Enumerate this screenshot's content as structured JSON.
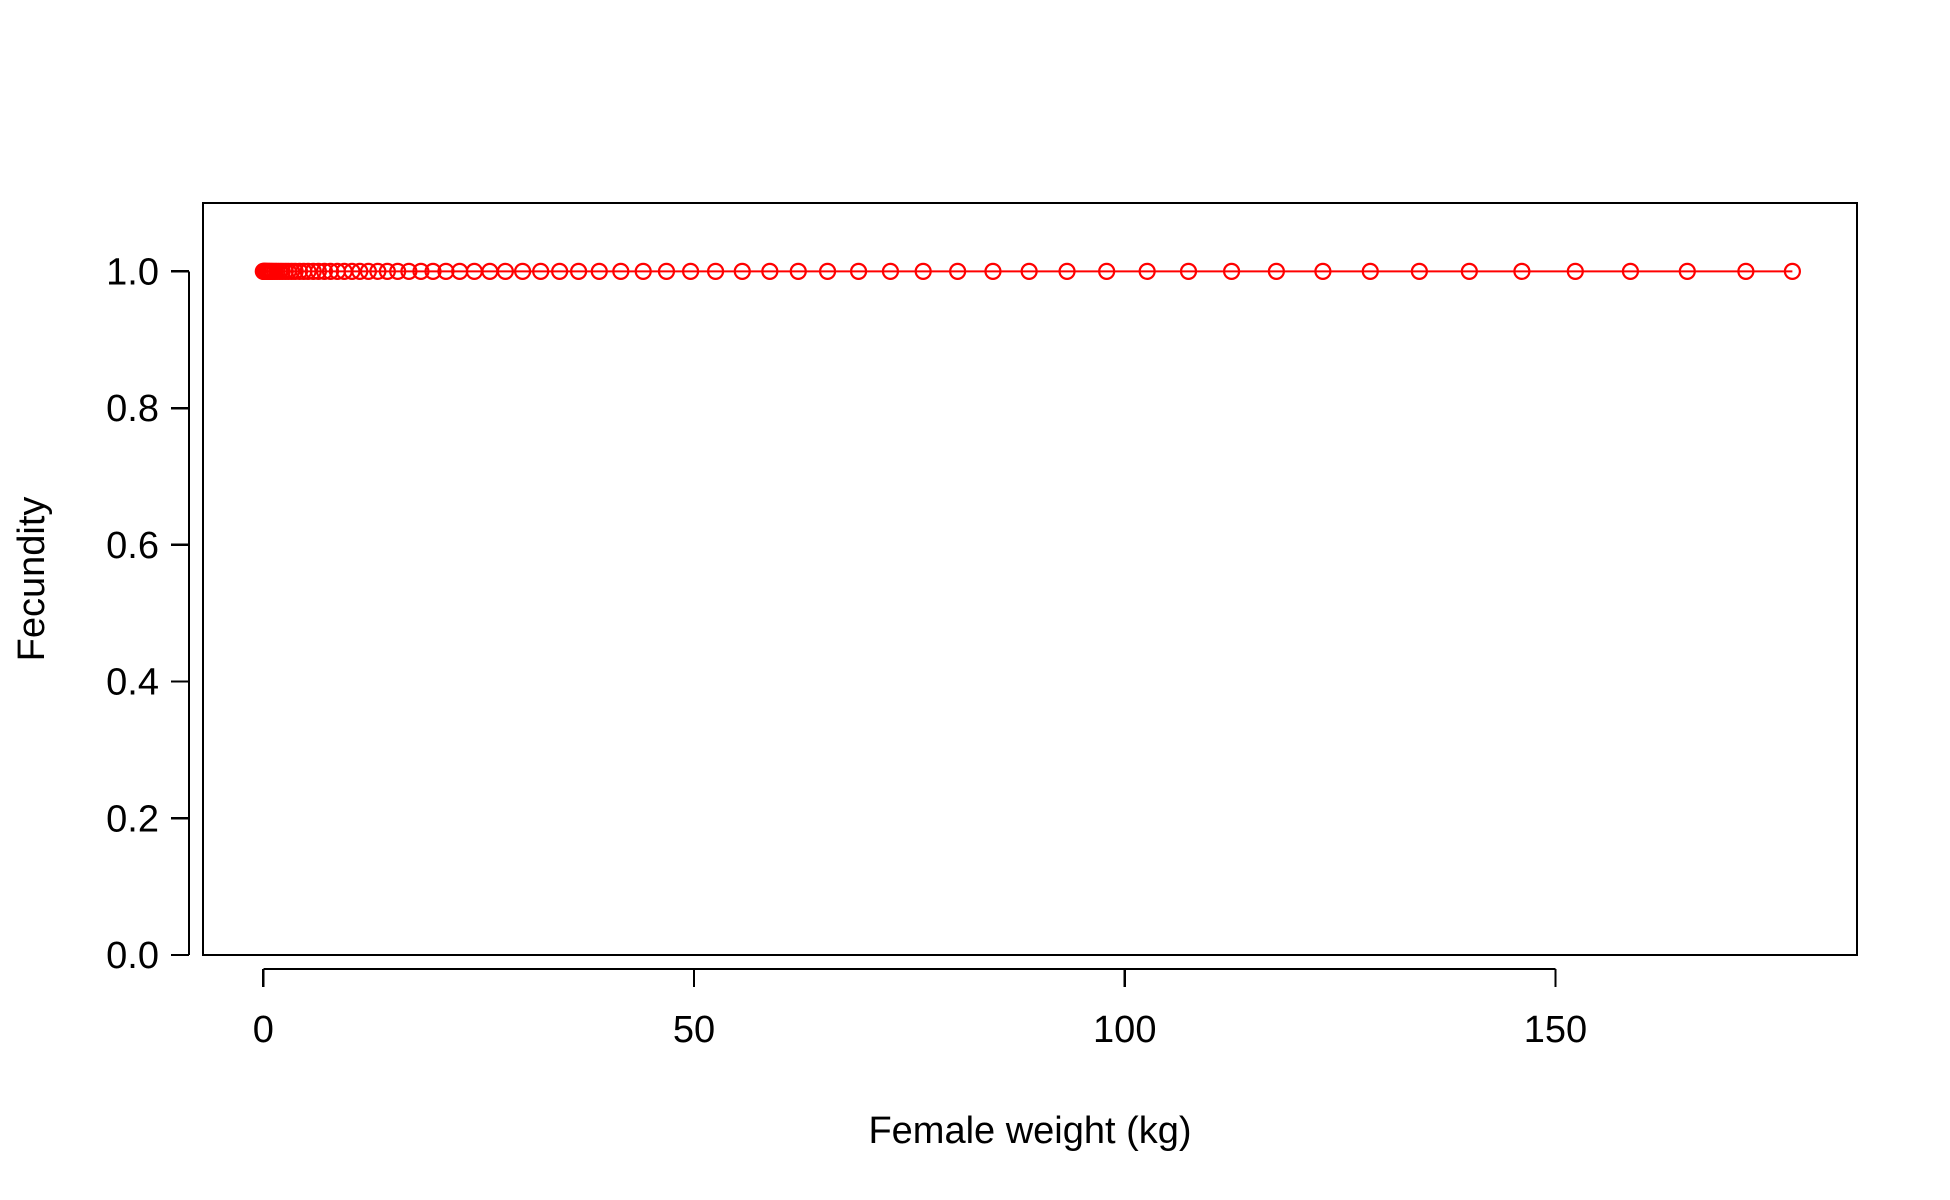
{
  "chart_data": {
    "type": "line",
    "title": "",
    "xlabel": "Female weight (kg)",
    "ylabel": "Fecundity",
    "xlim": [
      -7,
      185
    ],
    "ylim": [
      0,
      1.1
    ],
    "x_ticks": [
      0,
      50,
      100,
      150
    ],
    "x_tick_labels": [
      "0",
      "50",
      "100",
      "150"
    ],
    "y_ticks": [
      0,
      0.2,
      0.4,
      0.6,
      0.8,
      1.0
    ],
    "y_tick_labels": [
      "0.0",
      "0.2",
      "0.4",
      "0.6",
      "0.8",
      "1.0"
    ],
    "grid": false,
    "legend": "none",
    "series": [
      {
        "color": "#ff0000",
        "marker": "open-circle",
        "x": [
          0,
          0.05,
          0.12,
          0.2,
          0.3,
          0.42,
          0.56,
          0.72,
          0.9,
          1.1,
          1.35,
          1.6,
          1.9,
          2.2,
          2.55,
          2.9,
          3.3,
          3.7,
          4.2,
          4.7,
          5.2,
          5.8,
          6.4,
          7.1,
          7.8,
          8.6,
          9.4,
          10.3,
          11.2,
          12.2,
          13.3,
          14.4,
          15.6,
          16.9,
          18.3,
          19.7,
          21.2,
          22.8,
          24.5,
          26.3,
          28.1,
          30.1,
          32.2,
          34.4,
          36.6,
          39.0,
          41.5,
          44.1,
          46.8,
          49.6,
          52.5,
          55.6,
          58.8,
          62.1,
          65.5,
          69.1,
          72.8,
          76.6,
          80.6,
          84.7,
          88.9,
          93.3,
          97.9,
          102.6,
          107.4,
          112.4,
          117.6,
          123.0,
          128.5,
          134.2,
          140.0,
          146.1,
          152.3,
          158.7,
          165.3,
          172.1,
          177.5
        ],
        "y": [
          1,
          1,
          1,
          1,
          1,
          1,
          1,
          1,
          1,
          1,
          1,
          1,
          1,
          1,
          1,
          1,
          1,
          1,
          1,
          1,
          1,
          1,
          1,
          1,
          1,
          1,
          1,
          1,
          1,
          1,
          1,
          1,
          1,
          1,
          1,
          1,
          1,
          1,
          1,
          1,
          1,
          1,
          1,
          1,
          1,
          1,
          1,
          1,
          1,
          1,
          1,
          1,
          1,
          1,
          1,
          1,
          1,
          1,
          1,
          1,
          1,
          1,
          1,
          1,
          1,
          1,
          1,
          1,
          1,
          1,
          1,
          1,
          1,
          1,
          1,
          1,
          1
        ]
      }
    ]
  }
}
